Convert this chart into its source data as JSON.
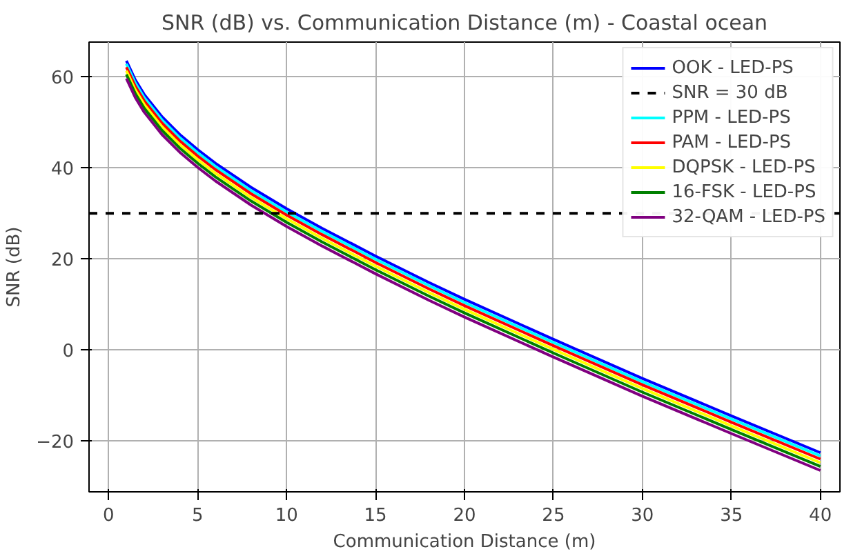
{
  "chart_data": {
    "type": "line",
    "title": "SNR (dB) vs. Communication Distance (m) - Coastal ocean",
    "xlabel": "Communication Distance (m)",
    "ylabel": "SNR (dB)",
    "x": [
      1,
      1.5,
      2,
      3,
      4,
      5,
      6,
      8,
      10,
      12,
      15,
      18,
      20,
      25,
      30,
      35,
      40
    ],
    "series": [
      {
        "name": "OOK - LED-PS",
        "color": "#0000ff",
        "values": [
          63.5,
          59.3,
          56.1,
          51.2,
          47.3,
          44.0,
          41.0,
          35.7,
          31.0,
          26.7,
          20.6,
          14.8,
          11.1,
          2.3,
          -6.3,
          -14.5,
          -22.6
        ]
      },
      {
        "name": "PPM - LED-PS",
        "color": "#00ffff",
        "values": [
          62.8,
          58.6,
          55.4,
          50.5,
          46.6,
          43.3,
          40.3,
          35.0,
          30.3,
          26.0,
          19.9,
          14.1,
          10.4,
          1.6,
          -7.0,
          -15.2,
          -23.3
        ]
      },
      {
        "name": "PAM - LED-PS",
        "color": "#ff0000",
        "values": [
          62.1,
          57.9,
          54.7,
          49.8,
          45.9,
          42.6,
          39.6,
          34.3,
          29.6,
          25.3,
          19.2,
          13.4,
          9.7,
          0.9,
          -7.7,
          -15.9,
          -24.0
        ]
      },
      {
        "name": "DQPSK - LED-PS",
        "color": "#ffff00",
        "values": [
          61.3,
          57.1,
          53.9,
          49.0,
          45.1,
          41.8,
          38.8,
          33.5,
          28.8,
          24.5,
          18.4,
          12.6,
          8.9,
          0.1,
          -8.5,
          -16.7,
          -24.8
        ]
      },
      {
        "name": "16-FSK - LED-PS",
        "color": "#008000",
        "values": [
          60.5,
          56.3,
          53.1,
          48.2,
          44.3,
          41.0,
          38.0,
          32.7,
          28.0,
          23.7,
          17.6,
          11.8,
          8.1,
          -0.7,
          -9.3,
          -17.5,
          -25.6
        ]
      },
      {
        "name": "32-QAM - LED-PS",
        "color": "#800080",
        "values": [
          59.6,
          55.4,
          52.2,
          47.3,
          43.4,
          40.1,
          37.1,
          31.8,
          27.1,
          22.8,
          16.7,
          10.9,
          7.2,
          -1.6,
          -10.2,
          -18.4,
          -26.5
        ]
      }
    ],
    "ref_lines": [
      {
        "axis": "y",
        "value": 30,
        "label": "SNR = 30 dB",
        "color": "#000000",
        "line_style": "dashed"
      }
    ],
    "xlim": [
      -1.1,
      41.1
    ],
    "ylim": [
      -31.2,
      67.6
    ],
    "xticks": [
      0,
      5,
      10,
      15,
      20,
      25,
      30,
      35,
      40
    ],
    "yticks": [
      -20,
      0,
      20,
      40,
      60
    ],
    "grid": true,
    "legend": "top right",
    "marker": "none",
    "line_style": "solid"
  }
}
